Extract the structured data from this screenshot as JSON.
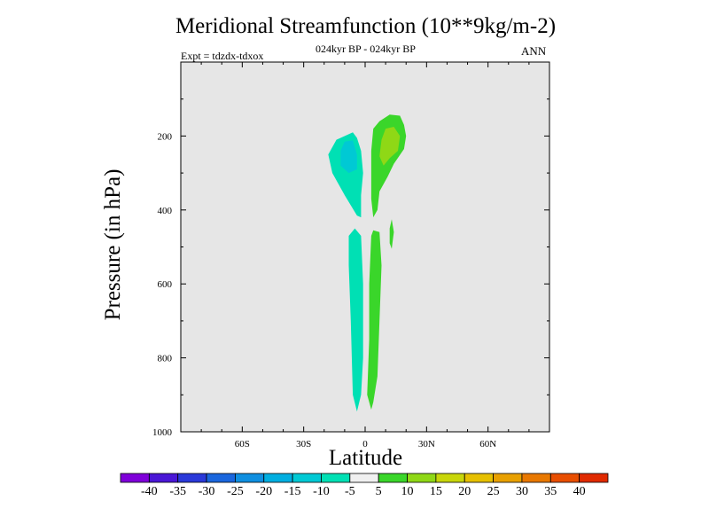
{
  "title": "Meridional Streamfunction (10**9kg/m-2)",
  "subtitle": "024kyr BP - 024kyr BP",
  "experiment": "Expt = tdzdx-tdxox",
  "season": "ANN",
  "chart_data": {
    "type": "contour",
    "title": "Meridional Streamfunction (10**9kg/m-2)",
    "xlabel": "Latitude",
    "ylabel": "Pressure (in hPa)",
    "xlim": [
      -90,
      90
    ],
    "ylim": [
      0,
      1000
    ],
    "y_inverted": true,
    "x_ticks": [
      {
        "value": -60,
        "label": "60S"
      },
      {
        "value": -30,
        "label": "30S"
      },
      {
        "value": 0,
        "label": "0"
      },
      {
        "value": 30,
        "label": "30N"
      },
      {
        "value": 60,
        "label": "60N"
      }
    ],
    "y_ticks": [
      {
        "value": 200,
        "label": "200"
      },
      {
        "value": 400,
        "label": "400"
      },
      {
        "value": 600,
        "label": "600"
      },
      {
        "value": 800,
        "label": "800"
      },
      {
        "value": 1000,
        "label": "1000"
      }
    ],
    "background_color": "#e6e6e6",
    "colorbar": {
      "levels": [
        -40,
        -35,
        -30,
        -25,
        -20,
        -15,
        -10,
        -5,
        5,
        10,
        15,
        20,
        25,
        30,
        35,
        40
      ],
      "colors": [
        "#7f00d9",
        "#4a17d6",
        "#2a39d9",
        "#1a66dd",
        "#0f8fe0",
        "#00aee0",
        "#00c9d4",
        "#00e0b4",
        "#f0f0f0",
        "#3ad62a",
        "#8fd816",
        "#c8d60a",
        "#e6c000",
        "#e8a000",
        "#e87800",
        "#e84e00",
        "#e02a00"
      ]
    },
    "regions": [
      {
        "value_range": [
          -10,
          -5
        ],
        "color": "#00e0b4",
        "points": [
          [
            -18,
            250
          ],
          [
            -14,
            210
          ],
          [
            -6,
            190
          ],
          [
            -4,
            205
          ],
          [
            -2,
            240
          ],
          [
            -1,
            300
          ],
          [
            -2,
            360
          ],
          [
            -2,
            420
          ],
          [
            -4,
            415
          ],
          [
            -10,
            360
          ],
          [
            -16,
            300
          ]
        ]
      },
      {
        "value_range": [
          -15,
          -10
        ],
        "color": "#00c9d4",
        "points": [
          [
            -12,
            240
          ],
          [
            -10,
            215
          ],
          [
            -6,
            212
          ],
          [
            -4,
            250
          ],
          [
            -4,
            290
          ],
          [
            -8,
            300
          ],
          [
            -12,
            280
          ]
        ]
      },
      {
        "value_range": [
          -10,
          -5
        ],
        "color": "#00e0b4",
        "points": [
          [
            -8,
            470
          ],
          [
            -5,
            450
          ],
          [
            -2,
            470
          ],
          [
            -1,
            600
          ],
          [
            -1,
            800
          ],
          [
            -2,
            900
          ],
          [
            -4,
            945
          ],
          [
            -6,
            900
          ],
          [
            -7,
            700
          ],
          [
            -8,
            550
          ]
        ]
      },
      {
        "value_range": [
          5,
          10
        ],
        "color": "#3ad62a",
        "points": [
          [
            4,
            180
          ],
          [
            7,
            160
          ],
          [
            12,
            142
          ],
          [
            17,
            145
          ],
          [
            19,
            170
          ],
          [
            20,
            200
          ],
          [
            19,
            235
          ],
          [
            14,
            275
          ],
          [
            11,
            310
          ],
          [
            7,
            350
          ],
          [
            6,
            400
          ],
          [
            4,
            420
          ],
          [
            3,
            370
          ],
          [
            3,
            300
          ],
          [
            3,
            240
          ]
        ]
      },
      {
        "value_range": [
          10,
          15
        ],
        "color": "#8fd816",
        "points": [
          [
            8,
            210
          ],
          [
            10,
            180
          ],
          [
            14,
            175
          ],
          [
            17,
            200
          ],
          [
            16,
            240
          ],
          [
            12,
            260
          ],
          [
            9,
            280
          ],
          [
            7,
            255
          ]
        ]
      },
      {
        "value_range": [
          5,
          10
        ],
        "color": "#3ad62a",
        "points": [
          [
            3,
            470
          ],
          [
            4,
            455
          ],
          [
            7,
            460
          ],
          [
            8,
            550
          ],
          [
            7,
            700
          ],
          [
            6,
            850
          ],
          [
            4,
            920
          ],
          [
            3,
            940
          ],
          [
            1,
            900
          ],
          [
            2,
            750
          ],
          [
            2,
            600
          ]
        ]
      },
      {
        "value_range": [
          5,
          10
        ],
        "color": "#3ad62a",
        "points": [
          [
            12,
            450
          ],
          [
            13,
            425
          ],
          [
            14,
            460
          ],
          [
            13,
            505
          ],
          [
            12,
            490
          ]
        ]
      }
    ]
  }
}
